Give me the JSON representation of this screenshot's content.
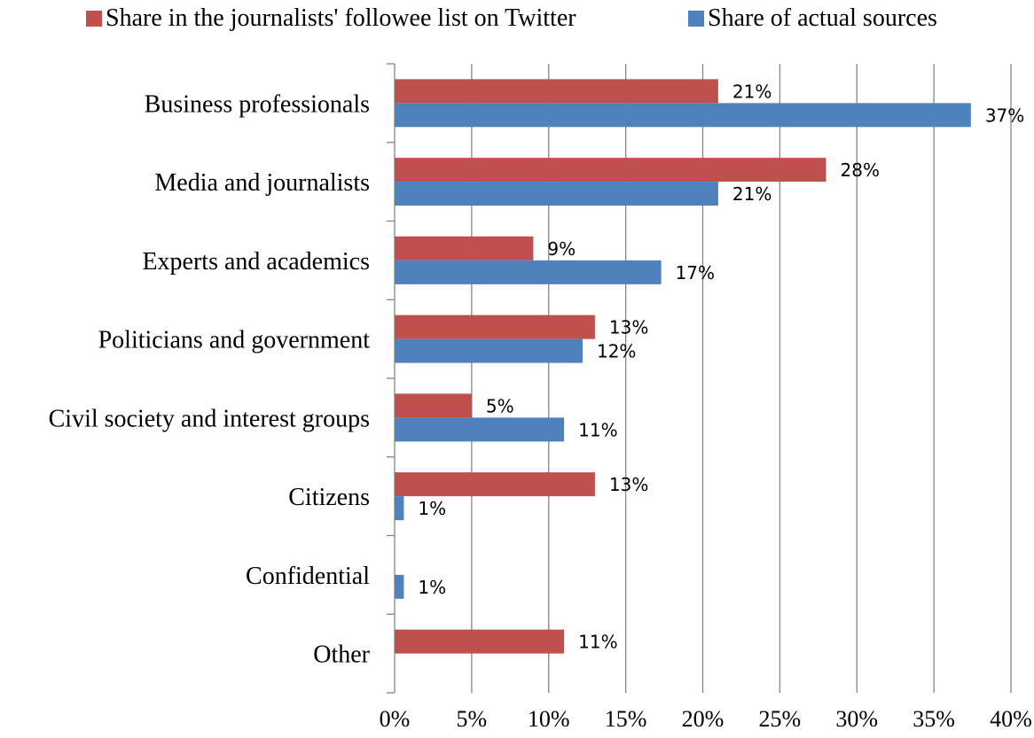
{
  "chart_data": {
    "type": "bar",
    "orientation": "horizontal",
    "categories": [
      "Business professionals",
      "Media and journalists",
      "Experts and academics",
      "Politicians and government",
      "Civil society and interest groups",
      "Citizens",
      "Confidential",
      "Other"
    ],
    "series": [
      {
        "name": "Share in the journalists' followee list on Twitter",
        "color": "#C0504D",
        "values": [
          21,
          28,
          9,
          13,
          5,
          13,
          null,
          11
        ],
        "labels": [
          "21%",
          "28%",
          "9%",
          "13%",
          "5%",
          "13%",
          "",
          "11%"
        ]
      },
      {
        "name": "Share of actual sources",
        "color": "#4F81BD",
        "values": [
          37.4,
          21,
          17.3,
          12.2,
          11,
          0.6,
          0.6,
          null
        ],
        "labels": [
          "37%",
          "21%",
          "17%",
          "12%",
          "11%",
          "1%",
          "1%",
          ""
        ]
      }
    ],
    "xlim": [
      0,
      40
    ],
    "x_ticks": [
      0,
      5,
      10,
      15,
      20,
      25,
      30,
      35,
      40
    ],
    "x_tick_labels": [
      "0%",
      "5%",
      "10%",
      "15%",
      "20%",
      "25%",
      "30%",
      "35%",
      "40%"
    ],
    "grid": "vertical",
    "legend_position": "top"
  }
}
